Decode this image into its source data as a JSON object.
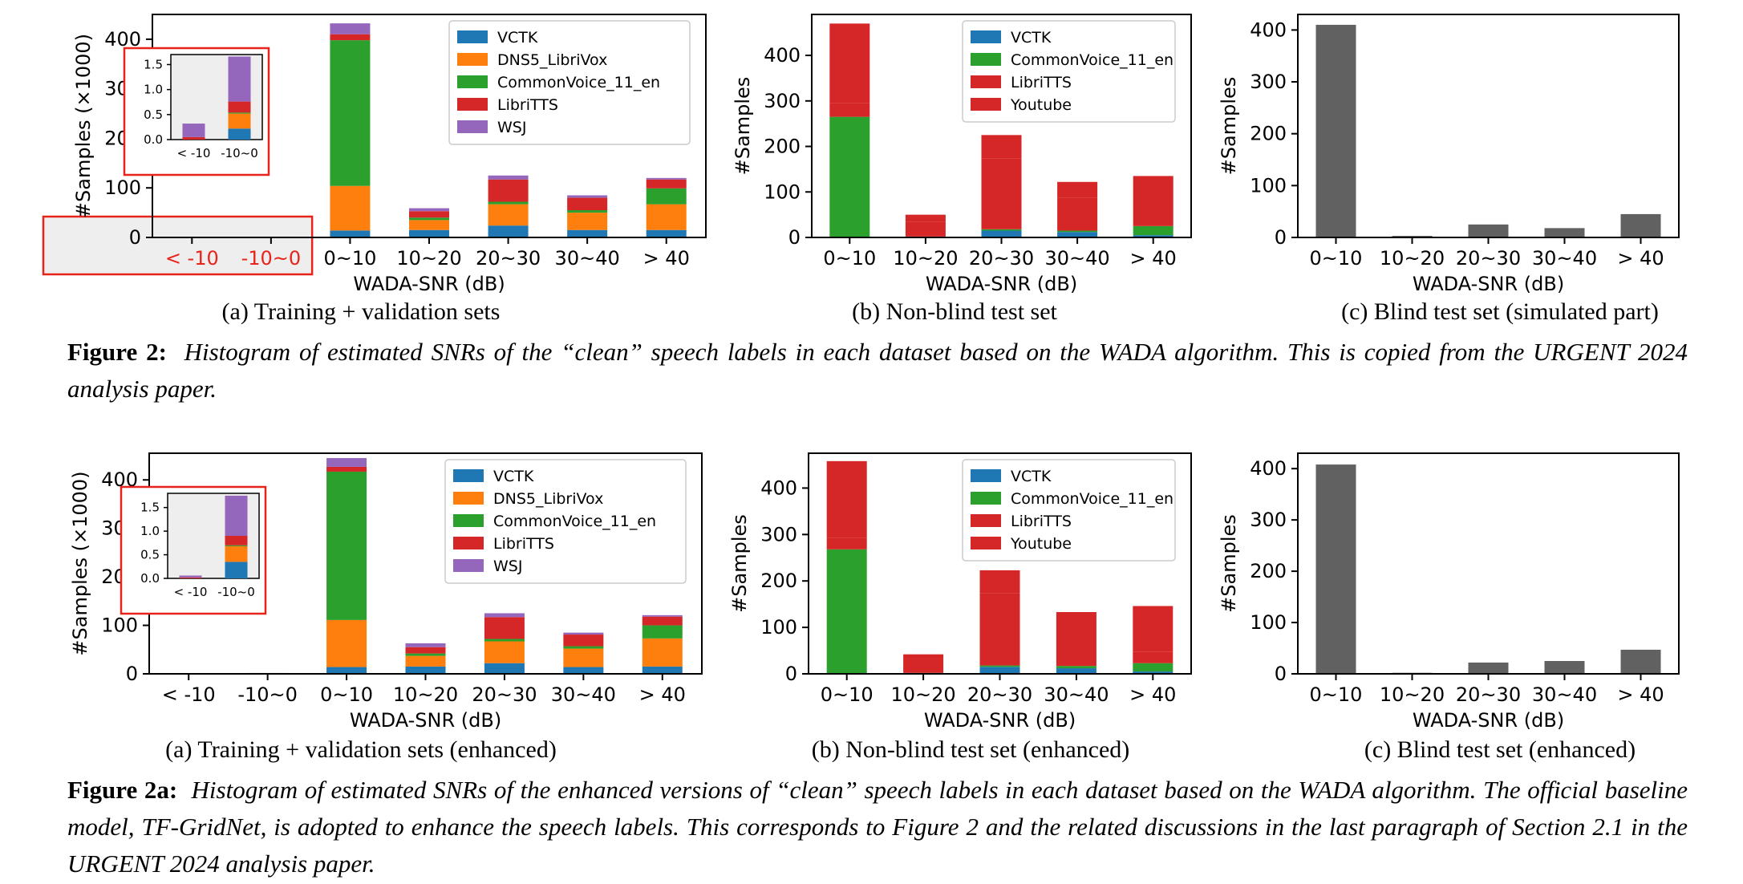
{
  "colors": {
    "VCTK": "#1f77b4",
    "DNS5_LibriVox": "#ff7f0e",
    "CommonVoice_11_en": "#2ca02c",
    "LibriTTS": "#d62728",
    "WSJ": "#9467bd",
    "Youtube": "#d62728",
    "blind": "#616161",
    "highlight": "#e8231c"
  },
  "xlabel": "WADA-SNR (dB)",
  "figure1": {
    "caption_label": "Figure 2:",
    "caption_text": "Histogram of estimated SNRs of the “clean” speech labels in each dataset based on the WADA algorithm. This is copied from the URGENT 2024 analysis paper.",
    "sub_a": "(a) Training + validation sets",
    "sub_b": "(b) Non-blind test set",
    "sub_c": "(c) Blind test set (simulated part)"
  },
  "figure2": {
    "caption_label": "Figure 2a:",
    "caption_text": "Histogram of estimated SNRs of the enhanced versions of “clean” speech labels in each dataset based on the WADA algorithm. The official baseline model, TF-GridNet, is adopted to enhance the speech labels. This corresponds to Figure 2 and the related discussions in the last paragraph of Section 2.1 in the URGENT 2024 analysis paper.",
    "sub_a": "(a) Training + validation sets (enhanced)",
    "sub_b": "(b) Non-blind test set  (enhanced)",
    "sub_c": "(c) Blind test set  (enhanced)"
  },
  "chart_data": [
    {
      "id": "fig2-a",
      "type": "bar",
      "stacked": true,
      "ylabel": "#Samples (×1000)",
      "xlabel": "WADA-SNR (dB)",
      "categories": [
        "< -10",
        "-10~0",
        "0~10",
        "10~20",
        "20~30",
        "30~40",
        "> 40"
      ],
      "highlight_categories": [
        "< -10",
        "-10~0"
      ],
      "ylim": [
        0,
        450
      ],
      "yticks": [
        0,
        100,
        200,
        300,
        400
      ],
      "legend_position": "top-right",
      "series": [
        {
          "name": "VCTK",
          "values": [
            0,
            0.22,
            14,
            15,
            24,
            15,
            15
          ]
        },
        {
          "name": "DNS5_LibriVox",
          "values": [
            0,
            0.3,
            90,
            20,
            43,
            35,
            52
          ]
        },
        {
          "name": "CommonVoice_11_en",
          "values": [
            0,
            0.02,
            294,
            5,
            5,
            5,
            32
          ]
        },
        {
          "name": "LibriTTS",
          "values": [
            0.05,
            0.22,
            12,
            13,
            45,
            25,
            18
          ]
        },
        {
          "name": "WSJ",
          "values": [
            0.27,
            0.9,
            22,
            6,
            8,
            5,
            3
          ]
        }
      ],
      "inset": {
        "categories": [
          "< -10",
          "-10~0"
        ],
        "ylim": [
          0,
          1.7
        ],
        "yticks": [
          "0.0",
          "0.5",
          "1.0",
          "1.5"
        ]
      }
    },
    {
      "id": "fig2-b",
      "type": "bar",
      "stacked": true,
      "ylabel": "#Samples",
      "xlabel": "WADA-SNR (dB)",
      "categories": [
        "0~10",
        "10~20",
        "20~30",
        "30~40",
        "> 40"
      ],
      "ylim": [
        0,
        490
      ],
      "yticks": [
        0,
        100,
        200,
        300,
        400
      ],
      "legend_position": "top-right",
      "series": [
        {
          "name": "VCTK",
          "values": [
            0,
            0,
            15,
            12,
            5
          ]
        },
        {
          "name": "CommonVoice_11_en",
          "values": [
            265,
            2,
            3,
            3,
            20
          ]
        },
        {
          "name": "LibriTTS",
          "values": [
            30,
            33,
            155,
            72,
            27
          ]
        },
        {
          "name": "Youtube",
          "values": [
            175,
            15,
            52,
            35,
            83
          ]
        }
      ]
    },
    {
      "id": "fig2-c",
      "type": "bar",
      "ylabel": "#Samples",
      "xlabel": "WADA-SNR (dB)",
      "categories": [
        "0~10",
        "10~20",
        "20~30",
        "30~40",
        "> 40"
      ],
      "ylim": [
        0,
        430
      ],
      "yticks": [
        0,
        100,
        200,
        300,
        400
      ],
      "values": [
        410,
        3,
        25,
        18,
        45
      ]
    },
    {
      "id": "fig2a-a",
      "type": "bar",
      "stacked": true,
      "ylabel": "#Samples (×1000)",
      "xlabel": "WADA-SNR (dB)",
      "categories": [
        "< -10",
        "-10~0",
        "0~10",
        "10~20",
        "20~30",
        "30~40",
        "> 40"
      ],
      "ylim": [
        0,
        455
      ],
      "yticks": [
        0,
        100,
        200,
        300,
        400
      ],
      "legend_position": "top-right",
      "series": [
        {
          "name": "VCTK",
          "values": [
            0,
            0.35,
            14,
            15,
            22,
            14,
            15
          ]
        },
        {
          "name": "DNS5_LibriVox",
          "values": [
            0,
            0.33,
            97,
            22,
            45,
            38,
            58
          ]
        },
        {
          "name": "CommonVoice_11_en",
          "values": [
            0,
            0.02,
            306,
            5,
            5,
            5,
            27
          ]
        },
        {
          "name": "LibriTTS",
          "values": [
            0.02,
            0.2,
            10,
            13,
            45,
            24,
            18
          ]
        },
        {
          "name": "WSJ",
          "values": [
            0.04,
            0.85,
            18,
            8,
            8,
            4,
            3
          ]
        }
      ],
      "inset": {
        "categories": [
          "< -10",
          "-10~0"
        ],
        "ylim": [
          0,
          1.8
        ],
        "yticks": [
          "0.0",
          "0.5",
          "1.0",
          "1.5"
        ]
      }
    },
    {
      "id": "fig2a-b",
      "type": "bar",
      "stacked": true,
      "ylabel": "#Samples",
      "xlabel": "WADA-SNR (dB)",
      "categories": [
        "0~10",
        "10~20",
        "20~30",
        "30~40",
        "> 40"
      ],
      "ylim": [
        0,
        475
      ],
      "yticks": [
        0,
        100,
        200,
        300,
        400
      ],
      "legend_position": "top-right",
      "series": [
        {
          "name": "VCTK",
          "values": [
            0,
            0,
            15,
            12,
            5
          ]
        },
        {
          "name": "CommonVoice_11_en",
          "values": [
            268,
            2,
            3,
            5,
            18
          ]
        },
        {
          "name": "LibriTTS",
          "values": [
            25,
            30,
            155,
            78,
            25
          ]
        },
        {
          "name": "Youtube",
          "values": [
            165,
            10,
            50,
            38,
            98
          ]
        }
      ]
    },
    {
      "id": "fig2a-c",
      "type": "bar",
      "ylabel": "#Samples",
      "xlabel": "WADA-SNR (dB)",
      "categories": [
        "0~10",
        "10~20",
        "20~30",
        "30~40",
        "> 40"
      ],
      "ylim": [
        0,
        430
      ],
      "yticks": [
        0,
        100,
        200,
        300,
        400
      ],
      "values": [
        408,
        2,
        22,
        25,
        47
      ]
    }
  ]
}
